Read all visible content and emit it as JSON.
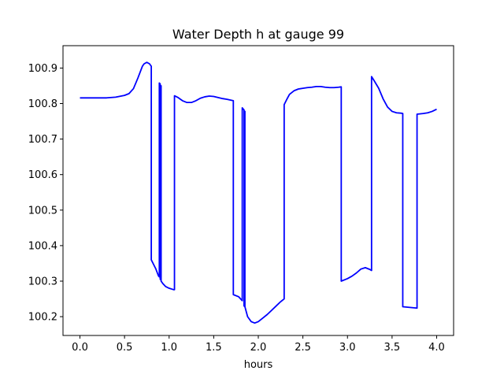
{
  "chart_data": {
    "type": "line",
    "title": "Water Depth h at gauge 99",
    "xlabel": "hours",
    "ylabel": "",
    "xlim": [
      -0.19,
      4.19
    ],
    "ylim": [
      100.147,
      100.963
    ],
    "x_ticks": [
      0.0,
      0.5,
      1.0,
      1.5,
      2.0,
      2.5,
      3.0,
      3.5,
      4.0
    ],
    "x_tick_labels": [
      "0.0",
      "0.5",
      "1.0",
      "1.5",
      "2.0",
      "2.5",
      "3.0",
      "3.5",
      "4.0"
    ],
    "y_ticks": [
      100.2,
      100.3,
      100.4,
      100.5,
      100.6,
      100.7,
      100.8,
      100.9
    ],
    "y_tick_labels": [
      "100.2",
      "100.3",
      "100.4",
      "100.5",
      "100.6",
      "100.7",
      "100.8",
      "100.9"
    ],
    "grid": false,
    "series": [
      {
        "color": "#0000ff",
        "x": [
          0.0,
          0.1,
          0.2,
          0.3,
          0.4,
          0.5,
          0.55,
          0.6,
          0.65,
          0.7,
          0.72,
          0.75,
          0.78,
          0.8,
          0.8,
          0.85,
          0.88,
          0.89,
          0.89,
          0.9,
          0.9,
          0.91,
          0.91,
          0.93,
          0.96,
          1.0,
          1.05,
          1.06,
          1.06,
          1.1,
          1.15,
          1.2,
          1.25,
          1.3,
          1.35,
          1.4,
          1.45,
          1.5,
          1.55,
          1.6,
          1.65,
          1.72,
          1.72,
          1.78,
          1.82,
          1.82,
          1.84,
          1.84,
          1.85,
          1.85,
          1.88,
          1.92,
          1.96,
          2.0,
          2.05,
          2.1,
          2.15,
          2.2,
          2.25,
          2.29,
          2.29,
          2.32,
          2.35,
          2.4,
          2.45,
          2.5,
          2.55,
          2.6,
          2.65,
          2.7,
          2.75,
          2.8,
          2.85,
          2.9,
          2.93,
          2.93,
          3.0,
          3.05,
          3.1,
          3.15,
          3.2,
          3.25,
          3.27,
          3.27,
          3.3,
          3.35,
          3.4,
          3.45,
          3.5,
          3.55,
          3.6,
          3.62,
          3.62,
          3.7,
          3.78,
          3.78,
          3.85,
          3.9,
          3.95,
          4.0
        ],
        "y": [
          100.816,
          100.816,
          100.816,
          100.816,
          100.818,
          100.823,
          100.828,
          100.842,
          100.872,
          100.905,
          100.912,
          100.916,
          100.912,
          100.905,
          100.36,
          100.335,
          100.315,
          100.312,
          100.858,
          100.855,
          100.305,
          100.85,
          100.3,
          100.293,
          100.285,
          100.28,
          100.276,
          100.276,
          100.822,
          100.817,
          100.808,
          100.803,
          100.803,
          100.808,
          100.815,
          100.819,
          100.821,
          100.82,
          100.817,
          100.814,
          100.812,
          100.808,
          100.262,
          100.256,
          100.245,
          100.788,
          100.782,
          100.23,
          100.778,
          100.228,
          100.2,
          100.186,
          100.182,
          100.186,
          100.196,
          100.206,
          100.218,
          100.23,
          100.242,
          100.25,
          100.797,
          100.812,
          100.826,
          100.836,
          100.841,
          100.843,
          100.845,
          100.846,
          100.848,
          100.848,
          100.846,
          100.845,
          100.845,
          100.846,
          100.847,
          100.3,
          100.307,
          100.314,
          100.323,
          100.334,
          100.338,
          100.333,
          100.33,
          100.876,
          100.864,
          100.843,
          100.813,
          100.79,
          100.778,
          100.774,
          100.773,
          100.772,
          100.228,
          100.226,
          100.224,
          100.77,
          100.772,
          100.774,
          100.778,
          100.784
        ]
      }
    ]
  }
}
